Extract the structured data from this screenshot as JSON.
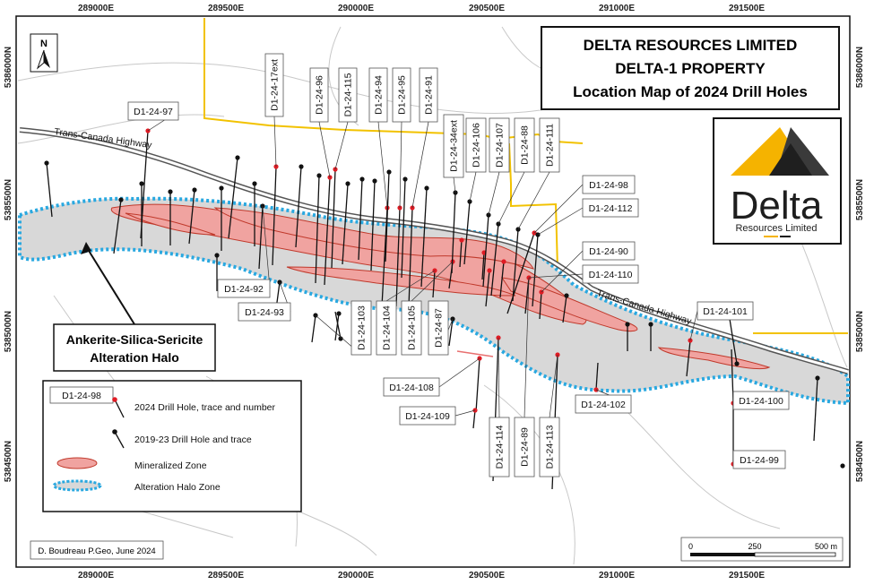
{
  "title": {
    "line1": "DELTA RESOURCES LIMITED",
    "line2": "DELTA-1 PROPERTY",
    "line3": "Location Map of 2024 Drill Holes"
  },
  "logo": {
    "word": "Delta",
    "subtitle": "Resources Limited"
  },
  "north_arrow": "N",
  "coords": {
    "top_easting": [
      "289000E",
      "289500E",
      "290000E",
      "290500E",
      "291000E",
      "291500E"
    ],
    "bottom_easting": [
      "289000E",
      "289500E",
      "290000E",
      "290500E",
      "291000E",
      "291500E"
    ],
    "left_northing": [
      "5386000N",
      "5385500N",
      "5385000N",
      "5384500N"
    ],
    "right_northing": [
      "5386000N",
      "5385500N",
      "5385000N",
      "5384500N"
    ]
  },
  "roads": {
    "highway_west": "Trans-Canada Highway",
    "highway_east": "Trans-Canada Highway"
  },
  "callout": {
    "line1": "Ankerite-Silica-Sericite",
    "line2": "Alteration Halo"
  },
  "drill_holes": [
    "D1-24-97",
    "D1-24-17ext",
    "D1-24-96",
    "D1-24-115",
    "D1-24-94",
    "D1-24-95",
    "D1-24-91",
    "D1-24-34ext",
    "D1-24-106",
    "D1-24-107",
    "D1-24-88",
    "D1-24-111",
    "D1-24-98",
    "D1-24-112",
    "D1-24-90",
    "D1-24-110",
    "D1-24-92",
    "D1-24-93",
    "D1-24-103",
    "D1-24-104",
    "D1-24-105",
    "D1-24-87",
    "D1-24-101",
    "D1-24-108",
    "D1-24-109",
    "D1-24-114",
    "D1-24-89",
    "D1-24-113",
    "D1-24-102",
    "D1-24-100",
    "D1-24-99"
  ],
  "legend": {
    "sample_hole": "D1-24-98",
    "drill_2024": "2024 Drill Hole, trace and number",
    "drill_2019": "2019-23 Drill Hole and trace",
    "mineralized": "Mineralized Zone",
    "halo": "Alteration Halo Zone"
  },
  "credit": "D. Boudreau P.Geo, June 2024",
  "scale": {
    "zero": "0",
    "mid": "250",
    "max": "500 m"
  },
  "colors": {
    "halo_fill": "#d8d8d8",
    "halo_border": "#29a8e0",
    "mineralized_fill": "#f0a3a0",
    "mineralized_stroke": "#c0392b",
    "drill_2024": "#e01b24",
    "drill_old": "#111111",
    "road_yellow": "#f2c200"
  }
}
